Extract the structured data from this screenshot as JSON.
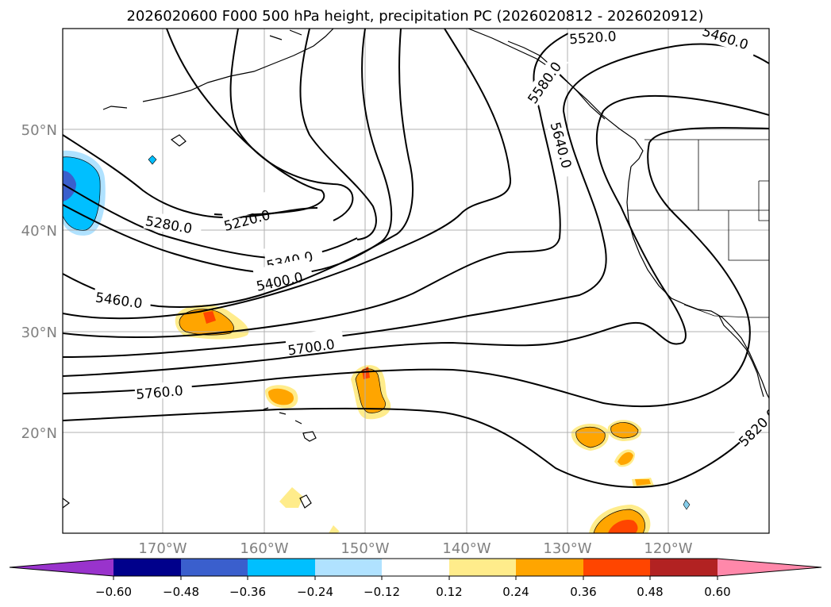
{
  "title": "2026020600 F000 500 hPa height, precipitation PC (2026020812 - 2026020912)",
  "lat_labels": [
    "50°N",
    "40°N",
    "30°N",
    "20°N"
  ],
  "lon_labels": [
    "170°W",
    "160°W",
    "150°W",
    "140°W",
    "130°W",
    "120°W"
  ],
  "contour_labels": [
    "5220.0",
    "5280.0",
    "5340.0",
    "5400.0",
    "5460.0",
    "5460.0",
    "5520.0",
    "5580.0",
    "5640.0",
    "5700.0",
    "5760.0",
    "5820.0"
  ],
  "colorbar": {
    "tick_labels": [
      "−0.60",
      "−0.48",
      "−0.36",
      "−0.24",
      "−0.12",
      "0.12",
      "0.24",
      "0.36",
      "0.48",
      "0.60"
    ],
    "colors": [
      "#9933cc",
      "#00008b",
      "#3a5fcd",
      "#00bfff",
      "#b0e2ff",
      "#ffffff",
      "#ffec8b",
      "#ffa500",
      "#ff4500",
      "#b22222",
      "#ff88aa"
    ]
  },
  "colors": {
    "grid": "#b0b0b0",
    "axis_label": "#808080",
    "contour": "#000000"
  }
}
